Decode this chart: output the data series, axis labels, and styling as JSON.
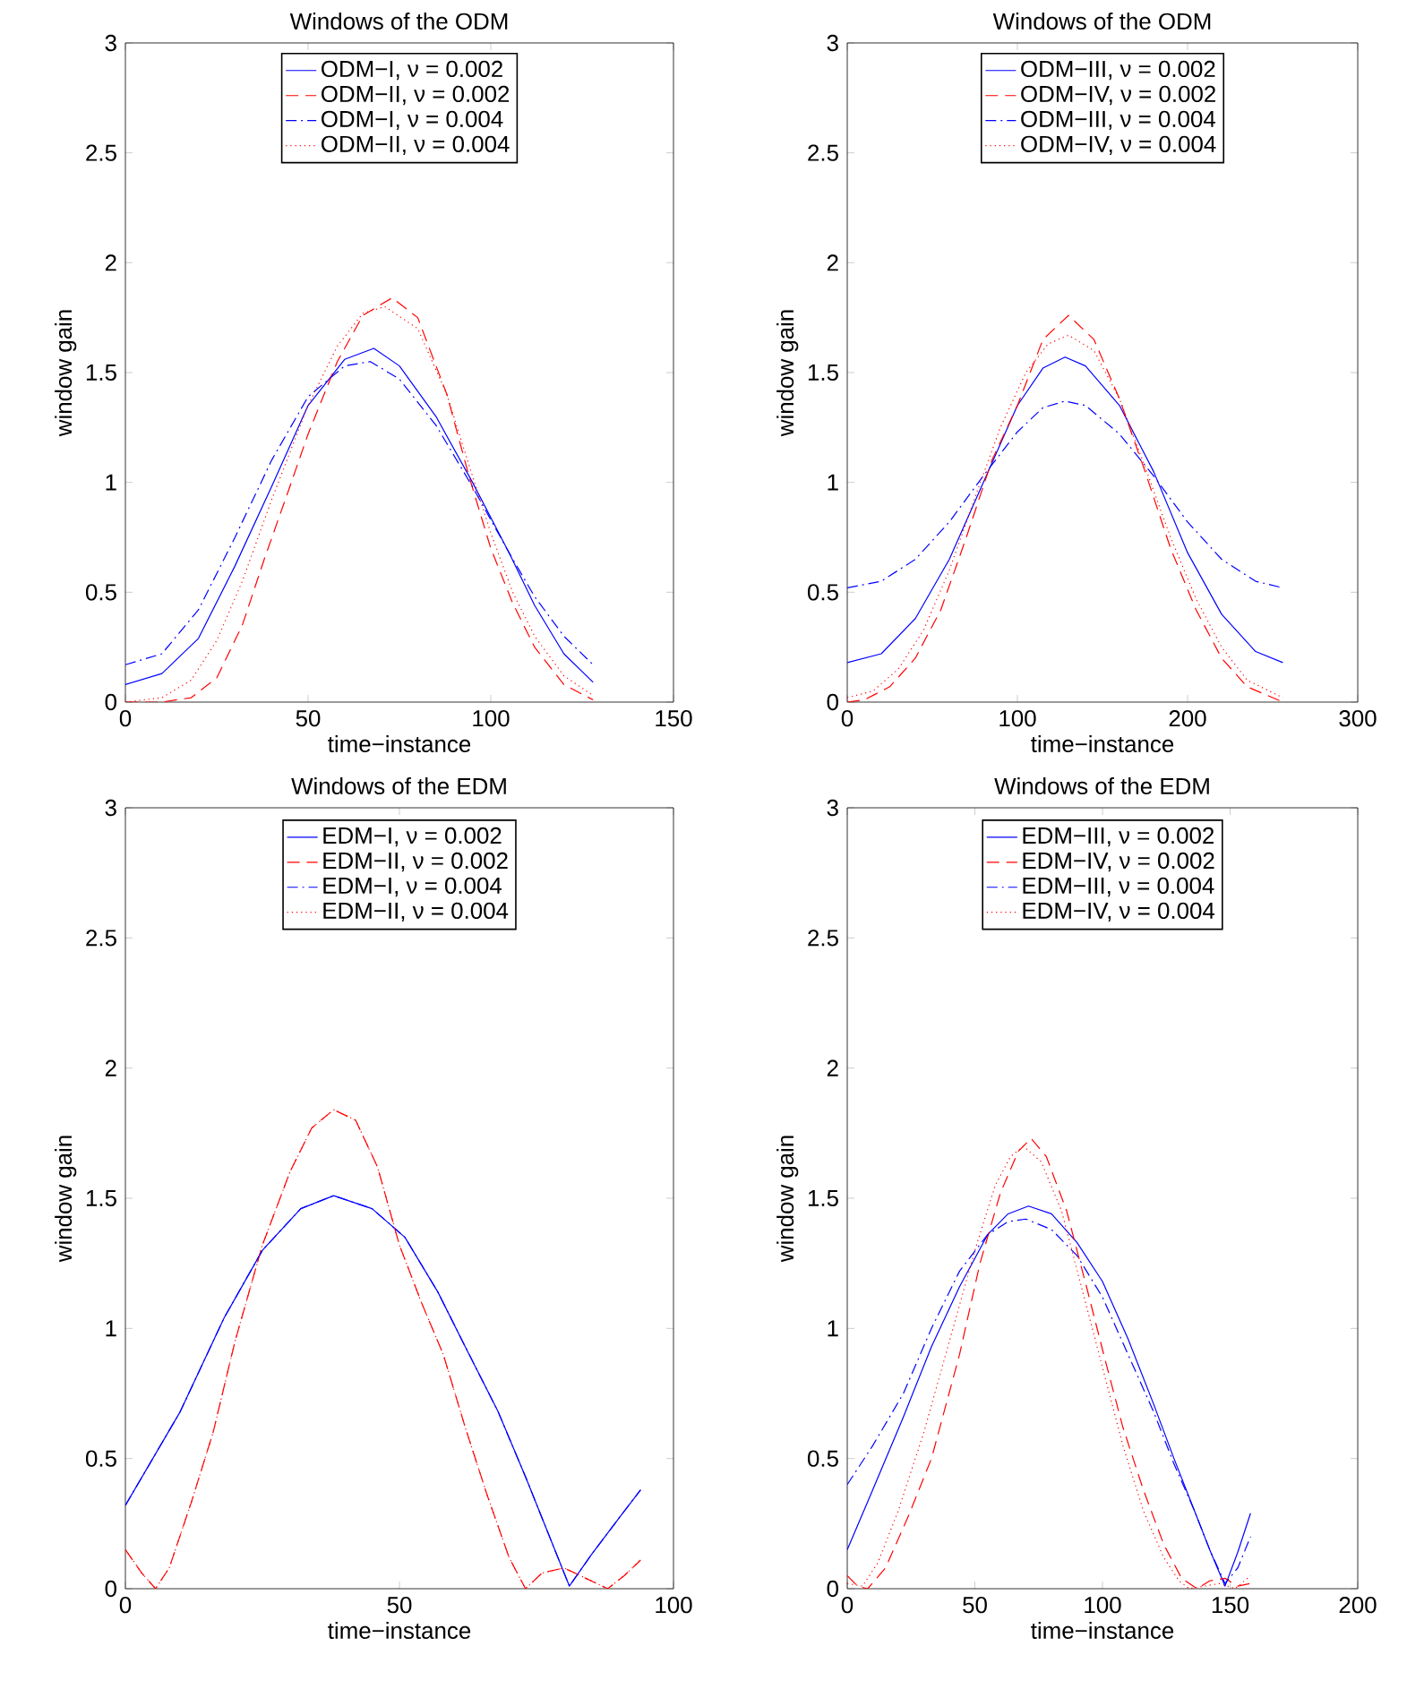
{
  "chart_data": [
    {
      "type": "line",
      "title": "Windows of the ODM",
      "xlabel": "time−instance",
      "ylabel": "window gain",
      "xlim": [
        0,
        150
      ],
      "ylim": [
        0,
        3
      ],
      "xticks": [
        0,
        50,
        100,
        150
      ],
      "yticks": [
        0,
        0.5,
        1,
        1.5,
        2,
        2.5,
        3
      ],
      "legend": "top",
      "grid": false,
      "series": [
        {
          "name": "ODM−I, ν = 0.002",
          "color": "#0000ff",
          "line_style": "solid",
          "x": [
            0,
            10,
            20,
            30,
            40,
            50,
            60,
            68,
            75,
            85,
            95,
            105,
            112,
            120,
            128
          ],
          "values": [
            0.08,
            0.13,
            0.29,
            0.62,
            0.98,
            1.35,
            1.56,
            1.61,
            1.53,
            1.3,
            1.0,
            0.68,
            0.44,
            0.22,
            0.09
          ]
        },
        {
          "name": "ODM−II, ν = 0.002",
          "color": "#ff0000",
          "line_style": "dashed",
          "x": [
            0,
            10,
            18,
            25,
            32,
            38,
            45,
            50,
            58,
            65,
            73,
            80,
            88,
            94,
            100,
            106,
            112,
            120,
            128
          ],
          "values": [
            0,
            0,
            0.02,
            0.11,
            0.35,
            0.65,
            0.98,
            1.22,
            1.55,
            1.76,
            1.84,
            1.75,
            1.4,
            1.03,
            0.7,
            0.45,
            0.25,
            0.08,
            0.01
          ]
        },
        {
          "name": "ODM−I, ν = 0.004",
          "color": "#0000ff",
          "line_style": "dashdot",
          "x": [
            0,
            10,
            20,
            30,
            40,
            50,
            60,
            67,
            75,
            85,
            95,
            105,
            112,
            120,
            128
          ],
          "values": [
            0.17,
            0.22,
            0.42,
            0.75,
            1.1,
            1.39,
            1.53,
            1.55,
            1.47,
            1.26,
            0.98,
            0.68,
            0.48,
            0.3,
            0.17
          ]
        },
        {
          "name": "ODM−II, ν = 0.004",
          "color": "#ff0000",
          "line_style": "dotted",
          "x": [
            0,
            10,
            18,
            25,
            32,
            40,
            50,
            58,
            65,
            71,
            80,
            88,
            94,
            100,
            106,
            112,
            120,
            128
          ],
          "values": [
            0,
            0.02,
            0.1,
            0.28,
            0.55,
            0.92,
            1.35,
            1.62,
            1.77,
            1.8,
            1.7,
            1.4,
            1.08,
            0.77,
            0.5,
            0.3,
            0.12,
            0.03
          ]
        }
      ]
    },
    {
      "type": "line",
      "title": "Windows of the ODM",
      "xlabel": "time−instance",
      "ylabel": "window gain",
      "xlim": [
        0,
        300
      ],
      "ylim": [
        0,
        3
      ],
      "xticks": [
        0,
        100,
        200,
        300
      ],
      "yticks": [
        0,
        0.5,
        1,
        1.5,
        2,
        2.5,
        3
      ],
      "legend": "top",
      "grid": false,
      "series": [
        {
          "name": "ODM−III, ν = 0.002",
          "color": "#0000ff",
          "line_style": "solid",
          "x": [
            0,
            20,
            40,
            60,
            80,
            100,
            115,
            128,
            140,
            160,
            180,
            200,
            220,
            240,
            256
          ],
          "values": [
            0.18,
            0.22,
            0.38,
            0.65,
            1.0,
            1.35,
            1.52,
            1.57,
            1.53,
            1.35,
            1.05,
            0.68,
            0.4,
            0.23,
            0.18
          ]
        },
        {
          "name": "ODM−IV, ν = 0.002",
          "color": "#ff0000",
          "line_style": "dashed",
          "x": [
            0,
            10,
            25,
            40,
            55,
            70,
            85,
            100,
            115,
            130,
            145,
            160,
            175,
            190,
            205,
            220,
            235,
            256
          ],
          "values": [
            0,
            0.01,
            0.07,
            0.2,
            0.42,
            0.75,
            1.1,
            1.35,
            1.65,
            1.76,
            1.65,
            1.38,
            1.05,
            0.7,
            0.42,
            0.2,
            0.07,
            0
          ]
        },
        {
          "name": "ODM−III, ν = 0.004",
          "color": "#0000ff",
          "line_style": "dashdot",
          "x": [
            0,
            20,
            40,
            60,
            80,
            100,
            115,
            128,
            140,
            160,
            180,
            200,
            220,
            240,
            256
          ],
          "values": [
            0.52,
            0.55,
            0.65,
            0.82,
            1.03,
            1.23,
            1.34,
            1.37,
            1.35,
            1.22,
            1.03,
            0.82,
            0.65,
            0.55,
            0.52
          ]
        },
        {
          "name": "ODM−IV, ν = 0.004",
          "color": "#ff0000",
          "line_style": "dotted",
          "x": [
            0,
            15,
            30,
            45,
            60,
            75,
            90,
            105,
            118,
            130,
            145,
            160,
            175,
            190,
            205,
            220,
            235,
            256
          ],
          "values": [
            0.02,
            0.05,
            0.15,
            0.33,
            0.6,
            0.93,
            1.25,
            1.5,
            1.63,
            1.67,
            1.6,
            1.38,
            1.07,
            0.75,
            0.47,
            0.25,
            0.1,
            0.02
          ]
        }
      ]
    },
    {
      "type": "line",
      "title": "Windows of the EDM",
      "xlabel": "time−instance",
      "ylabel": "window gain",
      "xlim": [
        0,
        100
      ],
      "ylim": [
        0,
        3
      ],
      "xticks": [
        0,
        50,
        100
      ],
      "yticks": [
        0,
        0.5,
        1,
        1.5,
        2,
        2.5,
        3
      ],
      "legend": "top",
      "grid": false,
      "series": [
        {
          "name": "EDM−I, ν = 0.002",
          "color": "#0000ff",
          "line_style": "solid",
          "x": [
            0,
            5,
            10,
            18,
            25,
            32,
            38,
            45,
            51,
            57,
            62,
            68,
            73,
            77,
            81,
            85,
            90,
            94
          ],
          "values": [
            0.32,
            0.5,
            0.68,
            1.04,
            1.3,
            1.46,
            1.51,
            1.46,
            1.35,
            1.14,
            0.93,
            0.68,
            0.43,
            0.22,
            0.01,
            0.13,
            0.27,
            0.38
          ]
        },
        {
          "name": "EDM−II, ν = 0.002",
          "color": "#ff0000",
          "line_style": "dashed",
          "x": [
            0,
            3,
            5.5,
            8,
            12,
            16,
            20,
            25,
            30,
            34,
            38,
            42,
            46,
            50,
            54,
            58,
            62,
            66,
            70,
            73,
            76,
            80,
            84,
            88,
            91,
            94
          ],
          "values": [
            0.15,
            0.06,
            0,
            0.08,
            0.33,
            0.6,
            0.95,
            1.32,
            1.6,
            1.77,
            1.84,
            1.8,
            1.62,
            1.32,
            1.1,
            0.9,
            0.62,
            0.36,
            0.12,
            0,
            0.06,
            0.08,
            0.04,
            0,
            0.05,
            0.11
          ]
        },
        {
          "name": "EDM−I, ν = 0.004",
          "color": "#0000ff",
          "line_style": "dashdot",
          "x": [
            0,
            5,
            10,
            18,
            25,
            32,
            38,
            45,
            51,
            57,
            62,
            68,
            73,
            77,
            81,
            85,
            90,
            94
          ],
          "values": [
            0.32,
            0.5,
            0.68,
            1.04,
            1.3,
            1.46,
            1.51,
            1.46,
            1.35,
            1.14,
            0.93,
            0.68,
            0.43,
            0.22,
            0.01,
            0.13,
            0.27,
            0.38
          ]
        },
        {
          "name": "EDM−II, ν = 0.004",
          "color": "#ff0000",
          "line_style": "dotted",
          "x": [
            0,
            3,
            5.5,
            8,
            12,
            16,
            20,
            25,
            30,
            34,
            38,
            42,
            46,
            50,
            54,
            58,
            62,
            66,
            70,
            73,
            76,
            80,
            84,
            88,
            91,
            94
          ],
          "values": [
            0.15,
            0.06,
            0,
            0.08,
            0.33,
            0.6,
            0.95,
            1.32,
            1.6,
            1.77,
            1.84,
            1.8,
            1.62,
            1.32,
            1.1,
            0.9,
            0.62,
            0.36,
            0.12,
            0,
            0.06,
            0.08,
            0.04,
            0,
            0.05,
            0.11
          ]
        }
      ]
    },
    {
      "type": "line",
      "title": "Windows of the EDM",
      "xlabel": "time−instance",
      "ylabel": "window gain",
      "xlim": [
        0,
        200
      ],
      "ylim": [
        0,
        3
      ],
      "xticks": [
        0,
        50,
        100,
        150,
        200
      ],
      "yticks": [
        0,
        0.5,
        1,
        1.5,
        2,
        2.5,
        3
      ],
      "legend": "top",
      "grid": false,
      "series": [
        {
          "name": "EDM−III, ν = 0.002",
          "color": "#0000ff",
          "line_style": "solid",
          "x": [
            0,
            10,
            22,
            33,
            44,
            55,
            63,
            71,
            80,
            90,
            100,
            110,
            120,
            128,
            136,
            142,
            148,
            153,
            158
          ],
          "values": [
            0.15,
            0.38,
            0.66,
            0.93,
            1.16,
            1.36,
            1.44,
            1.47,
            1.44,
            1.33,
            1.18,
            0.96,
            0.71,
            0.5,
            0.3,
            0.15,
            0.01,
            0.14,
            0.29
          ]
        },
        {
          "name": "EDM−IV, ν = 0.002",
          "color": "#ff0000",
          "line_style": "dashed",
          "x": [
            0,
            4,
            8,
            15,
            24,
            33,
            44,
            52,
            60,
            67,
            72,
            78,
            86,
            94,
            101,
            108,
            116,
            124,
            131,
            137,
            142,
            148,
            153,
            158
          ],
          "values": [
            0.05,
            0.01,
            0,
            0.08,
            0.28,
            0.5,
            0.9,
            1.25,
            1.52,
            1.68,
            1.73,
            1.66,
            1.45,
            1.15,
            0.88,
            0.62,
            0.38,
            0.17,
            0.04,
            0,
            0.03,
            0.04,
            0.01,
            0.02
          ]
        },
        {
          "name": "EDM−III, ν = 0.004",
          "color": "#0000ff",
          "line_style": "dashdot",
          "x": [
            0,
            10,
            22,
            33,
            44,
            55,
            63,
            70,
            80,
            90,
            100,
            110,
            120,
            128,
            136,
            142,
            148,
            153,
            158
          ],
          "values": [
            0.4,
            0.55,
            0.75,
            1.0,
            1.22,
            1.36,
            1.41,
            1.42,
            1.38,
            1.28,
            1.12,
            0.9,
            0.68,
            0.48,
            0.3,
            0.15,
            0.02,
            0.08,
            0.2
          ]
        },
        {
          "name": "EDM−IV, ν = 0.004",
          "color": "#ff0000",
          "line_style": "dotted",
          "x": [
            0,
            6,
            12,
            20,
            30,
            40,
            50,
            58,
            64,
            69,
            76,
            84,
            92,
            100,
            108,
            116,
            124,
            130,
            134,
            140,
            146,
            152,
            158
          ],
          "values": [
            0.02,
            0.01,
            0.1,
            0.3,
            0.6,
            0.95,
            1.3,
            1.55,
            1.66,
            1.7,
            1.64,
            1.45,
            1.15,
            0.85,
            0.55,
            0.3,
            0.12,
            0.03,
            0,
            0.01,
            0.02,
            0,
            0.05
          ]
        }
      ]
    }
  ]
}
